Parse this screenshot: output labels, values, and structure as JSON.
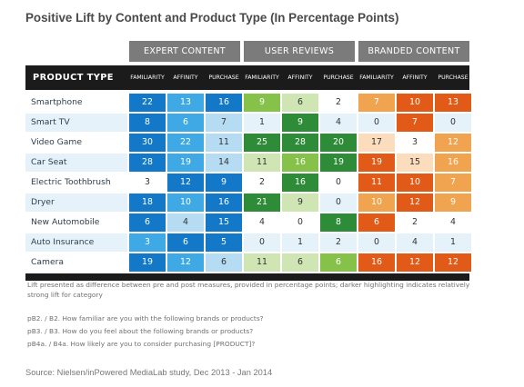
{
  "title": "Positive Lift by Content and Product Type (In Percentage Points)",
  "header": {
    "product_type_label": "PRODUCT TYPE",
    "groups": [
      "EXPERT CONTENT",
      "USER REVIEWS",
      "BRANDED CONTENT"
    ],
    "measures": [
      "FAMILIARITY",
      "AFFINITY",
      "PURCHASE"
    ]
  },
  "colors": {
    "expert_dark": "#1478c8",
    "expert_mid": "#3fa9e6",
    "expert_light": "#b5dcf3",
    "reviews_dark": "#2e8b37",
    "reviews_mid": "#86c14a",
    "reviews_light": "#cfe6b4",
    "branded_dark": "#e25a17",
    "branded_mid": "#f0a44f",
    "branded_light": "#fbdcbc",
    "header_dark": "#1b1b1b",
    "header_gray": "#7b7b7b"
  },
  "chart_data": {
    "type": "table",
    "title": "Positive Lift by Content and Product Type (In Percentage Points)",
    "row_header": "PRODUCT TYPE",
    "groups": [
      "EXPERT CONTENT",
      "USER REVIEWS",
      "BRANDED CONTENT"
    ],
    "measures": [
      "FAMILIARITY",
      "AFFINITY",
      "PURCHASE"
    ],
    "rows": [
      {
        "product": "Smartphone",
        "values": [
          22,
          13,
          16,
          9,
          6,
          2,
          7,
          10,
          13
        ],
        "levels": [
          3,
          2,
          3,
          2,
          1,
          0,
          2,
          3,
          3
        ]
      },
      {
        "product": "Smart TV",
        "values": [
          8,
          6,
          7,
          1,
          9,
          4,
          0,
          7,
          0
        ],
        "levels": [
          3,
          2,
          1,
          0,
          3,
          0,
          0,
          3,
          0
        ]
      },
      {
        "product": "Video Game",
        "values": [
          30,
          22,
          11,
          25,
          28,
          20,
          17,
          3,
          12
        ],
        "levels": [
          3,
          2,
          1,
          3,
          3,
          3,
          1,
          0,
          2
        ]
      },
      {
        "product": "Car Seat",
        "values": [
          28,
          19,
          14,
          11,
          16,
          19,
          19,
          15,
          16
        ],
        "levels": [
          3,
          2,
          1,
          1,
          2,
          3,
          3,
          1,
          2
        ]
      },
      {
        "product": "Electric Toothbrush",
        "values": [
          3,
          12,
          9,
          2,
          16,
          0,
          11,
          10,
          7
        ],
        "levels": [
          0,
          3,
          3,
          0,
          3,
          0,
          3,
          3,
          2
        ]
      },
      {
        "product": "Dryer",
        "values": [
          18,
          10,
          16,
          21,
          9,
          0,
          10,
          12,
          9
        ],
        "levels": [
          3,
          2,
          3,
          3,
          1,
          0,
          2,
          3,
          2
        ]
      },
      {
        "product": "New Automobile",
        "values": [
          6,
          4,
          15,
          4,
          0,
          8,
          6,
          2,
          4
        ],
        "levels": [
          3,
          1,
          3,
          0,
          0,
          3,
          3,
          0,
          0
        ]
      },
      {
        "product": "Auto Insurance",
        "values": [
          3,
          6,
          5,
          0,
          1,
          2,
          0,
          4,
          1
        ],
        "levels": [
          2,
          3,
          3,
          0,
          0,
          0,
          0,
          0,
          0
        ]
      },
      {
        "product": "Camera",
        "values": [
          19,
          12,
          6,
          11,
          6,
          6,
          16,
          12,
          12
        ],
        "levels": [
          3,
          2,
          1,
          1,
          1,
          2,
          3,
          3,
          3
        ]
      }
    ]
  },
  "notes": {
    "lift_line1": "Lift presented as difference between pre and post measures, provided in percentage points; darker highlighting indicates relatively",
    "lift_line2": "strong lift for category",
    "q1": "pB2. / B2. How familiar are you with the following brands or products?",
    "q2": "pB3. / B3. How do you feel about the following brands or products?",
    "q3": "pB4a. / B4a. How likely are you to consider purchasing [PRODUCT]?"
  },
  "source": "Source: Nielsen/inPowered MediaLab study, Dec 2013 - Jan 2014"
}
